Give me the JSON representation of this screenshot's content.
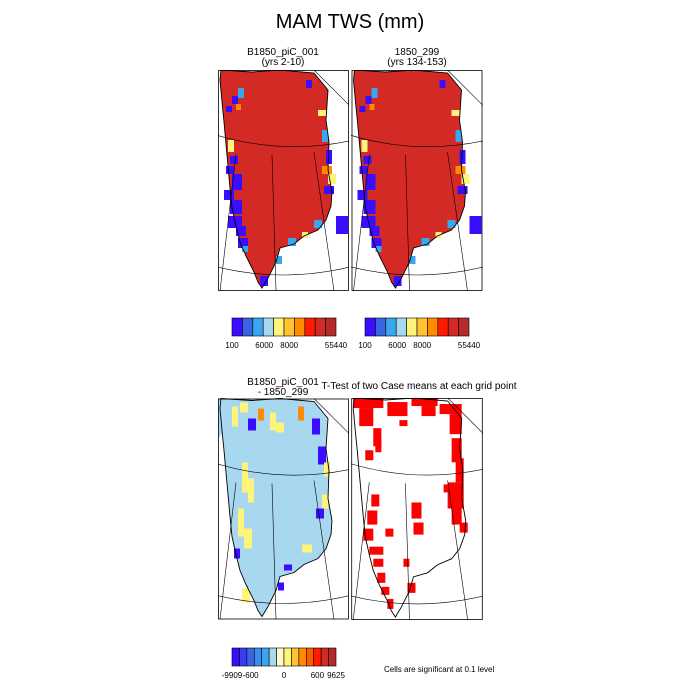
{
  "figure": {
    "title": "MAM TWS (mm)"
  },
  "panels": [
    {
      "id": "case1",
      "title_line1": "B1850_piC_001",
      "title_line2": "(yrs 2-10)"
    },
    {
      "id": "case2",
      "title_line1": "1850_299",
      "title_line2": "(yrs 134-153)"
    },
    {
      "id": "diff",
      "title_line1": "B1850_piC_001",
      "title_line2": "- 1850_299"
    },
    {
      "id": "ttest",
      "title_line1": "T-Test of two Case means at each grid point",
      "title_line2": ""
    }
  ],
  "colorbars": {
    "absolute": {
      "colors": [
        "#3a0dff",
        "#3b64e3",
        "#3aa6ef",
        "#a8d8ef",
        "#fff47a",
        "#ffc233",
        "#ff8c00",
        "#ff1a00",
        "#d42a25",
        "#b32c29"
      ],
      "labels": [
        "100",
        "6000",
        "8000",
        "55440"
      ]
    },
    "difference": {
      "colors": [
        "#3a0dff",
        "#3b3bf2",
        "#3b64e3",
        "#3a8ef0",
        "#3aa6ef",
        "#a8d8ef",
        "#fff8c9",
        "#fff47a",
        "#ffc233",
        "#ff8c00",
        "#ff5a00",
        "#ff1a00",
        "#d42a25",
        "#b32c29"
      ],
      "labels": [
        "-9909",
        "-600",
        "0",
        "600",
        "9625"
      ]
    }
  },
  "ttest_note": "Cells are significant at 0.1 level",
  "map_colors": {
    "ice_high": "#d42a25",
    "diff_neutral": "#a8d8ef",
    "significant": "#ff0000",
    "coast_blue": "#3a0dff",
    "coast_light": "#3aa6ef",
    "coast_yellow": "#fff47a",
    "coast_orange": "#ff8c00"
  }
}
